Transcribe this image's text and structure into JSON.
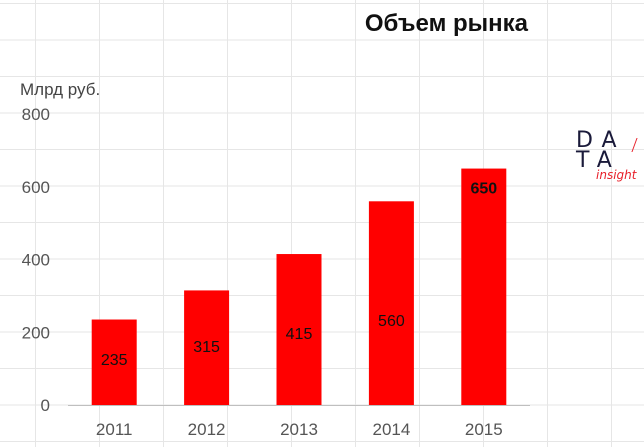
{
  "chart_data": {
    "type": "bar",
    "title": "Объем рынка",
    "ylabel": "Млрд руб.",
    "xlabel": "",
    "categories": [
      "2011",
      "2012",
      "2013",
      "2014",
      "2015"
    ],
    "values": [
      235,
      315,
      415,
      560,
      650
    ],
    "data_labels": [
      "235",
      "315",
      "415",
      "560",
      "650"
    ],
    "yticks": [
      "0",
      "200",
      "400",
      "600",
      "800"
    ],
    "ylim": [
      0,
      800
    ],
    "grid": true,
    "bar_color": "#ff0000",
    "legend": "none"
  },
  "logo": {
    "row1": "DA",
    "row2": "TA",
    "sub": "insight",
    "color_dark": "#1a1a3a",
    "color_accent": "#e8202a"
  }
}
